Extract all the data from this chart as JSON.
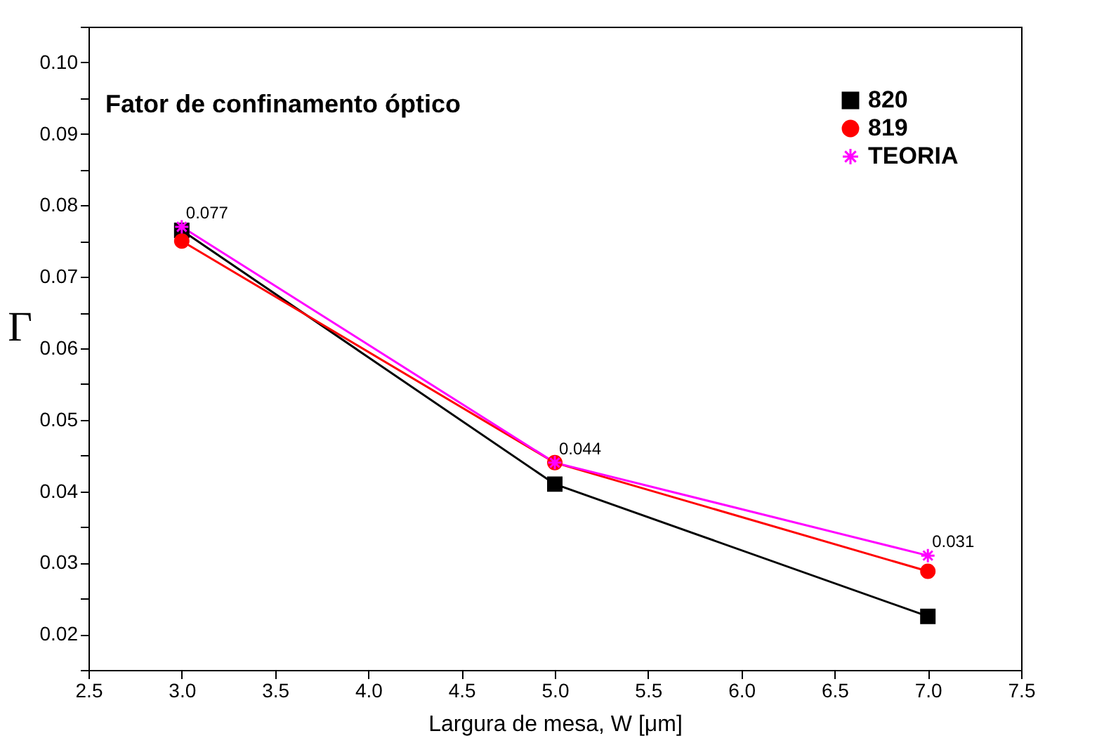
{
  "chart_data": {
    "type": "line",
    "title": "Fator de confinamento óptico",
    "xlabel": "Largura de mesa, W [μm]",
    "ylabel": "Γ",
    "x": [
      3.0,
      5.0,
      7.0
    ],
    "series": [
      {
        "name": "820",
        "color": "#000000",
        "marker": "square",
        "values": [
          0.0765,
          0.041,
          0.0225
        ]
      },
      {
        "name": "819",
        "color": "#ff0000",
        "marker": "circle",
        "values": [
          0.075,
          0.044,
          0.0288
        ]
      },
      {
        "name": "TEORIA",
        "color": "#ff00ff",
        "marker": "cross",
        "values": [
          0.077,
          0.044,
          0.031
        ],
        "value_labels": [
          "0.077",
          "0.044",
          "0.031"
        ]
      }
    ],
    "xlim": [
      2.5,
      7.5
    ],
    "xticks": [
      2.5,
      {
        "value": 3,
        "label": "3.0"
      },
      3.5,
      {
        "value": 4,
        "label": "4.0"
      },
      4.5,
      {
        "value": 5,
        "label": "5.0"
      },
      5.5,
      {
        "value": 6,
        "label": "6.0"
      },
      6.5,
      {
        "value": 7,
        "label": "7.0"
      },
      7.5
    ],
    "ylim": [
      0.015,
      0.105
    ],
    "yticks": [
      {
        "value": 0.015,
        "label": null
      },
      {
        "value": 0.02,
        "label": "0.02"
      },
      {
        "value": 0.025,
        "label": null
      },
      {
        "value": 0.03,
        "label": "0.03"
      },
      {
        "value": 0.035,
        "label": null
      },
      {
        "value": 0.04,
        "label": "0.04"
      },
      {
        "value": 0.045,
        "label": null
      },
      {
        "value": 0.05,
        "label": "0.05"
      },
      {
        "value": 0.055,
        "label": null
      },
      {
        "value": 0.06,
        "label": "0.06"
      },
      {
        "value": 0.065,
        "label": null
      },
      {
        "value": 0.07,
        "label": "0.07"
      },
      {
        "value": 0.075,
        "label": null
      },
      {
        "value": 0.08,
        "label": "0.08"
      },
      {
        "value": 0.085,
        "label": null
      },
      {
        "value": 0.09,
        "label": "0.09"
      },
      {
        "value": 0.095,
        "label": null
      },
      {
        "value": 0.1,
        "label": "0.10"
      },
      {
        "value": 0.105,
        "label": null
      }
    ],
    "legend": "top right",
    "grid": false
  }
}
